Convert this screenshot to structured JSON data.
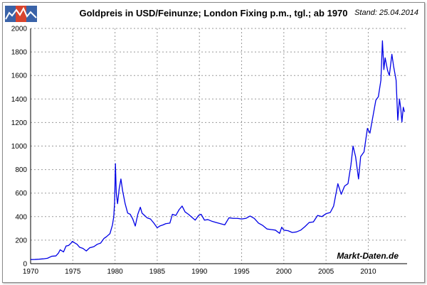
{
  "header": {
    "title": "Goldpreis in USD/Feinunze; London Fixing p.m., tgl.; ab 1970",
    "stand": "Stand: 25.04.2014",
    "watermark": "Markt-Daten.de",
    "logo_icon": "chart-logo-icon"
  },
  "chart_data": {
    "type": "line",
    "title": "Goldpreis in USD/Feinunze; London Fixing p.m., tgl.; ab 1970",
    "xlabel": "",
    "ylabel": "",
    "xlim": [
      1970,
      2014.6
    ],
    "ylim": [
      0,
      2000
    ],
    "x_ticks": [
      1970,
      1975,
      1980,
      1985,
      1990,
      1995,
      2000,
      2005,
      2010
    ],
    "y_ticks": [
      0,
      200,
      400,
      600,
      800,
      1000,
      1200,
      1400,
      1600,
      1800,
      2000
    ],
    "grid": true,
    "color": "#0000e6",
    "series": [
      {
        "values": [
          [
            1970.0,
            35
          ],
          [
            1970.5,
            36
          ],
          [
            1971.0,
            38
          ],
          [
            1971.5,
            41
          ],
          [
            1972.0,
            46
          ],
          [
            1972.5,
            63
          ],
          [
            1973.0,
            66
          ],
          [
            1973.3,
            90
          ],
          [
            1973.5,
            118
          ],
          [
            1973.9,
            100
          ],
          [
            1974.2,
            150
          ],
          [
            1974.5,
            155
          ],
          [
            1974.8,
            175
          ],
          [
            1974.95,
            190
          ],
          [
            1975.2,
            178
          ],
          [
            1975.5,
            165
          ],
          [
            1975.8,
            140
          ],
          [
            1976.2,
            130
          ],
          [
            1976.6,
            108
          ],
          [
            1977.0,
            135
          ],
          [
            1977.5,
            145
          ],
          [
            1977.9,
            165
          ],
          [
            1978.3,
            175
          ],
          [
            1978.7,
            215
          ],
          [
            1979.0,
            230
          ],
          [
            1979.4,
            255
          ],
          [
            1979.7,
            330
          ],
          [
            1979.85,
            400
          ],
          [
            1979.95,
            520
          ],
          [
            1980.05,
            850
          ],
          [
            1980.15,
            600
          ],
          [
            1980.3,
            510
          ],
          [
            1980.5,
            640
          ],
          [
            1980.7,
            720
          ],
          [
            1980.9,
            620
          ],
          [
            1981.2,
            510
          ],
          [
            1981.5,
            430
          ],
          [
            1981.8,
            420
          ],
          [
            1982.1,
            380
          ],
          [
            1982.4,
            320
          ],
          [
            1982.7,
            420
          ],
          [
            1983.0,
            480
          ],
          [
            1983.2,
            430
          ],
          [
            1983.5,
            410
          ],
          [
            1983.8,
            390
          ],
          [
            1984.2,
            380
          ],
          [
            1984.6,
            345
          ],
          [
            1985.0,
            305
          ],
          [
            1985.3,
            320
          ],
          [
            1985.7,
            330
          ],
          [
            1986.0,
            340
          ],
          [
            1986.5,
            345
          ],
          [
            1986.8,
            420
          ],
          [
            1987.2,
            410
          ],
          [
            1987.6,
            460
          ],
          [
            1987.95,
            490
          ],
          [
            1988.3,
            440
          ],
          [
            1988.7,
            420
          ],
          [
            1989.1,
            395
          ],
          [
            1989.5,
            370
          ],
          [
            1989.9,
            410
          ],
          [
            1990.2,
            420
          ],
          [
            1990.6,
            370
          ],
          [
            1991.0,
            375
          ],
          [
            1991.5,
            360
          ],
          [
            1992.0,
            350
          ],
          [
            1992.5,
            340
          ],
          [
            1993.0,
            330
          ],
          [
            1993.5,
            390
          ],
          [
            1994.0,
            385
          ],
          [
            1994.5,
            385
          ],
          [
            1995.0,
            380
          ],
          [
            1995.5,
            385
          ],
          [
            1996.0,
            405
          ],
          [
            1996.5,
            385
          ],
          [
            1997.0,
            345
          ],
          [
            1997.5,
            325
          ],
          [
            1998.0,
            295
          ],
          [
            1998.5,
            290
          ],
          [
            1999.0,
            285
          ],
          [
            1999.5,
            258
          ],
          [
            1999.75,
            310
          ],
          [
            2000.0,
            285
          ],
          [
            2000.5,
            280
          ],
          [
            2001.0,
            265
          ],
          [
            2001.5,
            270
          ],
          [
            2002.0,
            285
          ],
          [
            2002.5,
            315
          ],
          [
            2003.0,
            350
          ],
          [
            2003.5,
            355
          ],
          [
            2004.0,
            410
          ],
          [
            2004.5,
            400
          ],
          [
            2005.0,
            425
          ],
          [
            2005.5,
            435
          ],
          [
            2005.9,
            490
          ],
          [
            2006.4,
            680
          ],
          [
            2006.8,
            590
          ],
          [
            2007.2,
            660
          ],
          [
            2007.6,
            680
          ],
          [
            2007.95,
            840
          ],
          [
            2008.2,
            1000
          ],
          [
            2008.5,
            910
          ],
          [
            2008.85,
            720
          ],
          [
            2009.1,
            910
          ],
          [
            2009.5,
            950
          ],
          [
            2009.9,
            1150
          ],
          [
            2010.2,
            1110
          ],
          [
            2010.5,
            1230
          ],
          [
            2010.9,
            1390
          ],
          [
            2011.2,
            1420
          ],
          [
            2011.5,
            1560
          ],
          [
            2011.68,
            1895
          ],
          [
            2011.85,
            1650
          ],
          [
            2012.0,
            1750
          ],
          [
            2012.3,
            1640
          ],
          [
            2012.5,
            1600
          ],
          [
            2012.8,
            1780
          ],
          [
            2013.0,
            1680
          ],
          [
            2013.3,
            1560
          ],
          [
            2013.5,
            1220
          ],
          [
            2013.7,
            1400
          ],
          [
            2013.85,
            1320
          ],
          [
            2013.99,
            1205
          ],
          [
            2014.15,
            1330
          ],
          [
            2014.3,
            1290
          ]
        ]
      }
    ]
  }
}
